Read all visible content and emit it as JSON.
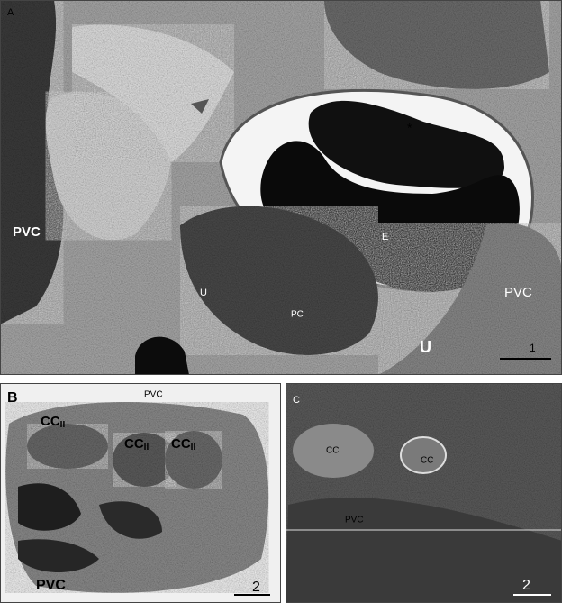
{
  "panels": {
    "a": {
      "letter": "A",
      "labels": [
        "PVC",
        "*",
        "E",
        "U",
        "PC",
        "PVC",
        "U"
      ],
      "scale": "1"
    },
    "b": {
      "letter": "B",
      "labels": [
        "PVC",
        "PVC"
      ],
      "cc": [
        {
          "main": "CC",
          "sub": "II"
        },
        {
          "main": "CC",
          "sub": "II"
        },
        {
          "main": "CC",
          "sub": "II"
        }
      ],
      "scale": "2"
    },
    "c": {
      "letter": "C",
      "labels": [
        "CC",
        "CC",
        "PVC"
      ],
      "scale": "2"
    }
  }
}
